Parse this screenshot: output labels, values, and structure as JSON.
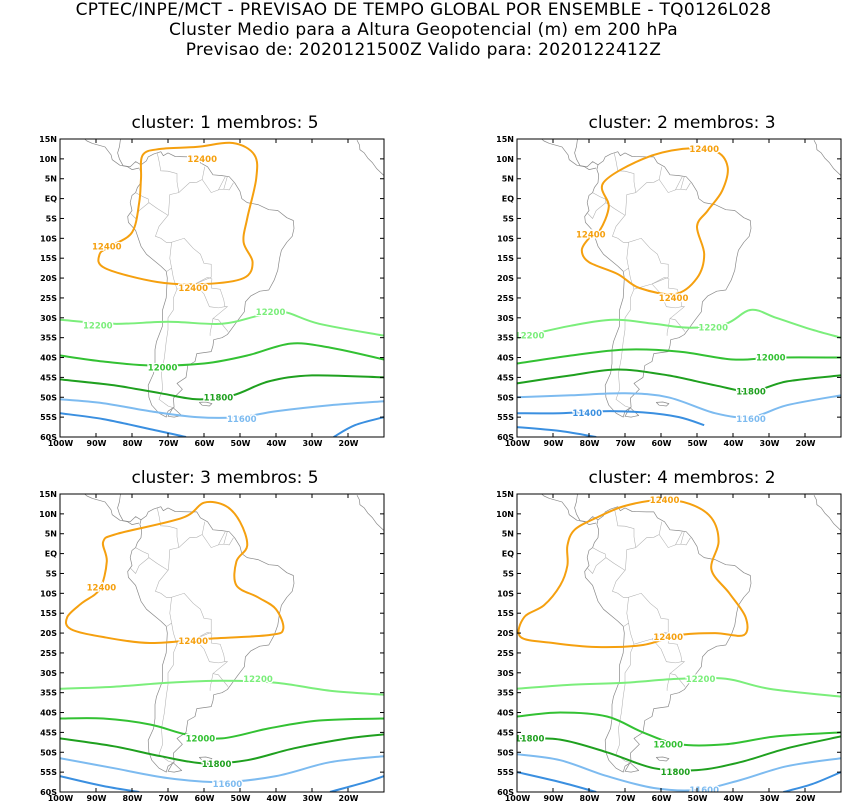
{
  "header": {
    "line1": "CPTEC/INPE/MCT - PREVISAO DE TEMPO GLOBAL POR ENSEMBLE - TQ0126L028",
    "line2": "Cluster Medio para a Altura Geopotencial (m) em 200 hPa",
    "line3": "Previsao de: 2020121500Z   Valido para: 2020122412Z"
  },
  "axes": {
    "lat_labels": [
      "15N",
      "10N",
      "5N",
      "EQ",
      "5S",
      "10S",
      "15S",
      "20S",
      "25S",
      "30S",
      "35S",
      "40S",
      "45S",
      "50S",
      "55S",
      "60S"
    ],
    "lon_labels": [
      "100W",
      "90W",
      "80W",
      "70W",
      "60W",
      "50W",
      "40W",
      "30W",
      "20W"
    ]
  },
  "colors": {
    "c12400": "#f5a00f",
    "c12200": "#7bee7b",
    "c12000": "#33c133",
    "c11800": "#1fa01f",
    "c11600": "#7dbbf0",
    "c11400": "#3a8fe0",
    "coast": "#8a8a8a"
  },
  "panels": [
    {
      "title": "cluster: 1   membros: 5",
      "labels": [
        {
          "text": "12400",
          "lon": -60.5,
          "lat": 10,
          "color": "c12400"
        },
        {
          "text": "12400",
          "lon": -87,
          "lat": -12,
          "color": "c12400"
        },
        {
          "text": "12400",
          "lon": -63,
          "lat": -22.5,
          "color": "c12400"
        },
        {
          "text": "12200",
          "lon": -89.5,
          "lat": -32,
          "color": "c12200"
        },
        {
          "text": "12200",
          "lon": -41.5,
          "lat": -28.5,
          "color": "c12200"
        },
        {
          "text": "12000",
          "lon": -71.5,
          "lat": -42.5,
          "color": "c12000"
        },
        {
          "text": "11800",
          "lon": -56,
          "lat": -50,
          "color": "c11800"
        },
        {
          "text": "11600",
          "lon": -49.5,
          "lat": -55.5,
          "color": "c11600"
        }
      ]
    },
    {
      "title": "cluster: 2   membros: 3",
      "labels": [
        {
          "text": "12400",
          "lon": -48,
          "lat": 12.5,
          "color": "c12400"
        },
        {
          "text": "12400",
          "lon": -79.5,
          "lat": -9,
          "color": "c12400"
        },
        {
          "text": "12400",
          "lon": -56.5,
          "lat": -25,
          "color": "c12400"
        },
        {
          "text": "12200",
          "lon": -96.5,
          "lat": -34.5,
          "color": "c12200"
        },
        {
          "text": "12200",
          "lon": -45.5,
          "lat": -32.5,
          "color": "c12200"
        },
        {
          "text": "12000",
          "lon": -29.5,
          "lat": -40,
          "color": "c12000"
        },
        {
          "text": "11800",
          "lon": -35,
          "lat": -48.5,
          "color": "c11800"
        },
        {
          "text": "11600",
          "lon": -35,
          "lat": -55.5,
          "color": "c11600"
        },
        {
          "text": "11400",
          "lon": -80.5,
          "lat": -54,
          "color": "c11400"
        }
      ]
    },
    {
      "title": "cluster: 3   membros: 5",
      "labels": [
        {
          "text": "12400",
          "lon": -88.5,
          "lat": -8.5,
          "color": "c12400"
        },
        {
          "text": "12400",
          "lon": -63,
          "lat": -22,
          "color": "c12400"
        },
        {
          "text": "12200",
          "lon": -45,
          "lat": -31.5,
          "color": "c12200"
        },
        {
          "text": "12000",
          "lon": -61,
          "lat": -46.5,
          "color": "c12000"
        },
        {
          "text": "11800",
          "lon": -56.5,
          "lat": -53,
          "color": "c11800"
        },
        {
          "text": "11600",
          "lon": -53.5,
          "lat": -58,
          "color": "c11600"
        }
      ]
    },
    {
      "title": "cluster: 4   membros: 2",
      "labels": [
        {
          "text": "12400",
          "lon": -59,
          "lat": 13.5,
          "color": "c12400"
        },
        {
          "text": "12400",
          "lon": -58,
          "lat": -21,
          "color": "c12400"
        },
        {
          "text": "12200",
          "lon": -49,
          "lat": -31.5,
          "color": "c12200"
        },
        {
          "text": "12000",
          "lon": -58,
          "lat": -48,
          "color": "c12000"
        },
        {
          "text": "11800",
          "lon": -96.5,
          "lat": -46.5,
          "color": "c11800"
        },
        {
          "text": "11800",
          "lon": -56,
          "lat": -55,
          "color": "c11800"
        },
        {
          "text": "11600",
          "lon": -48,
          "lat": -59.5,
          "color": "c11600"
        }
      ]
    }
  ]
}
